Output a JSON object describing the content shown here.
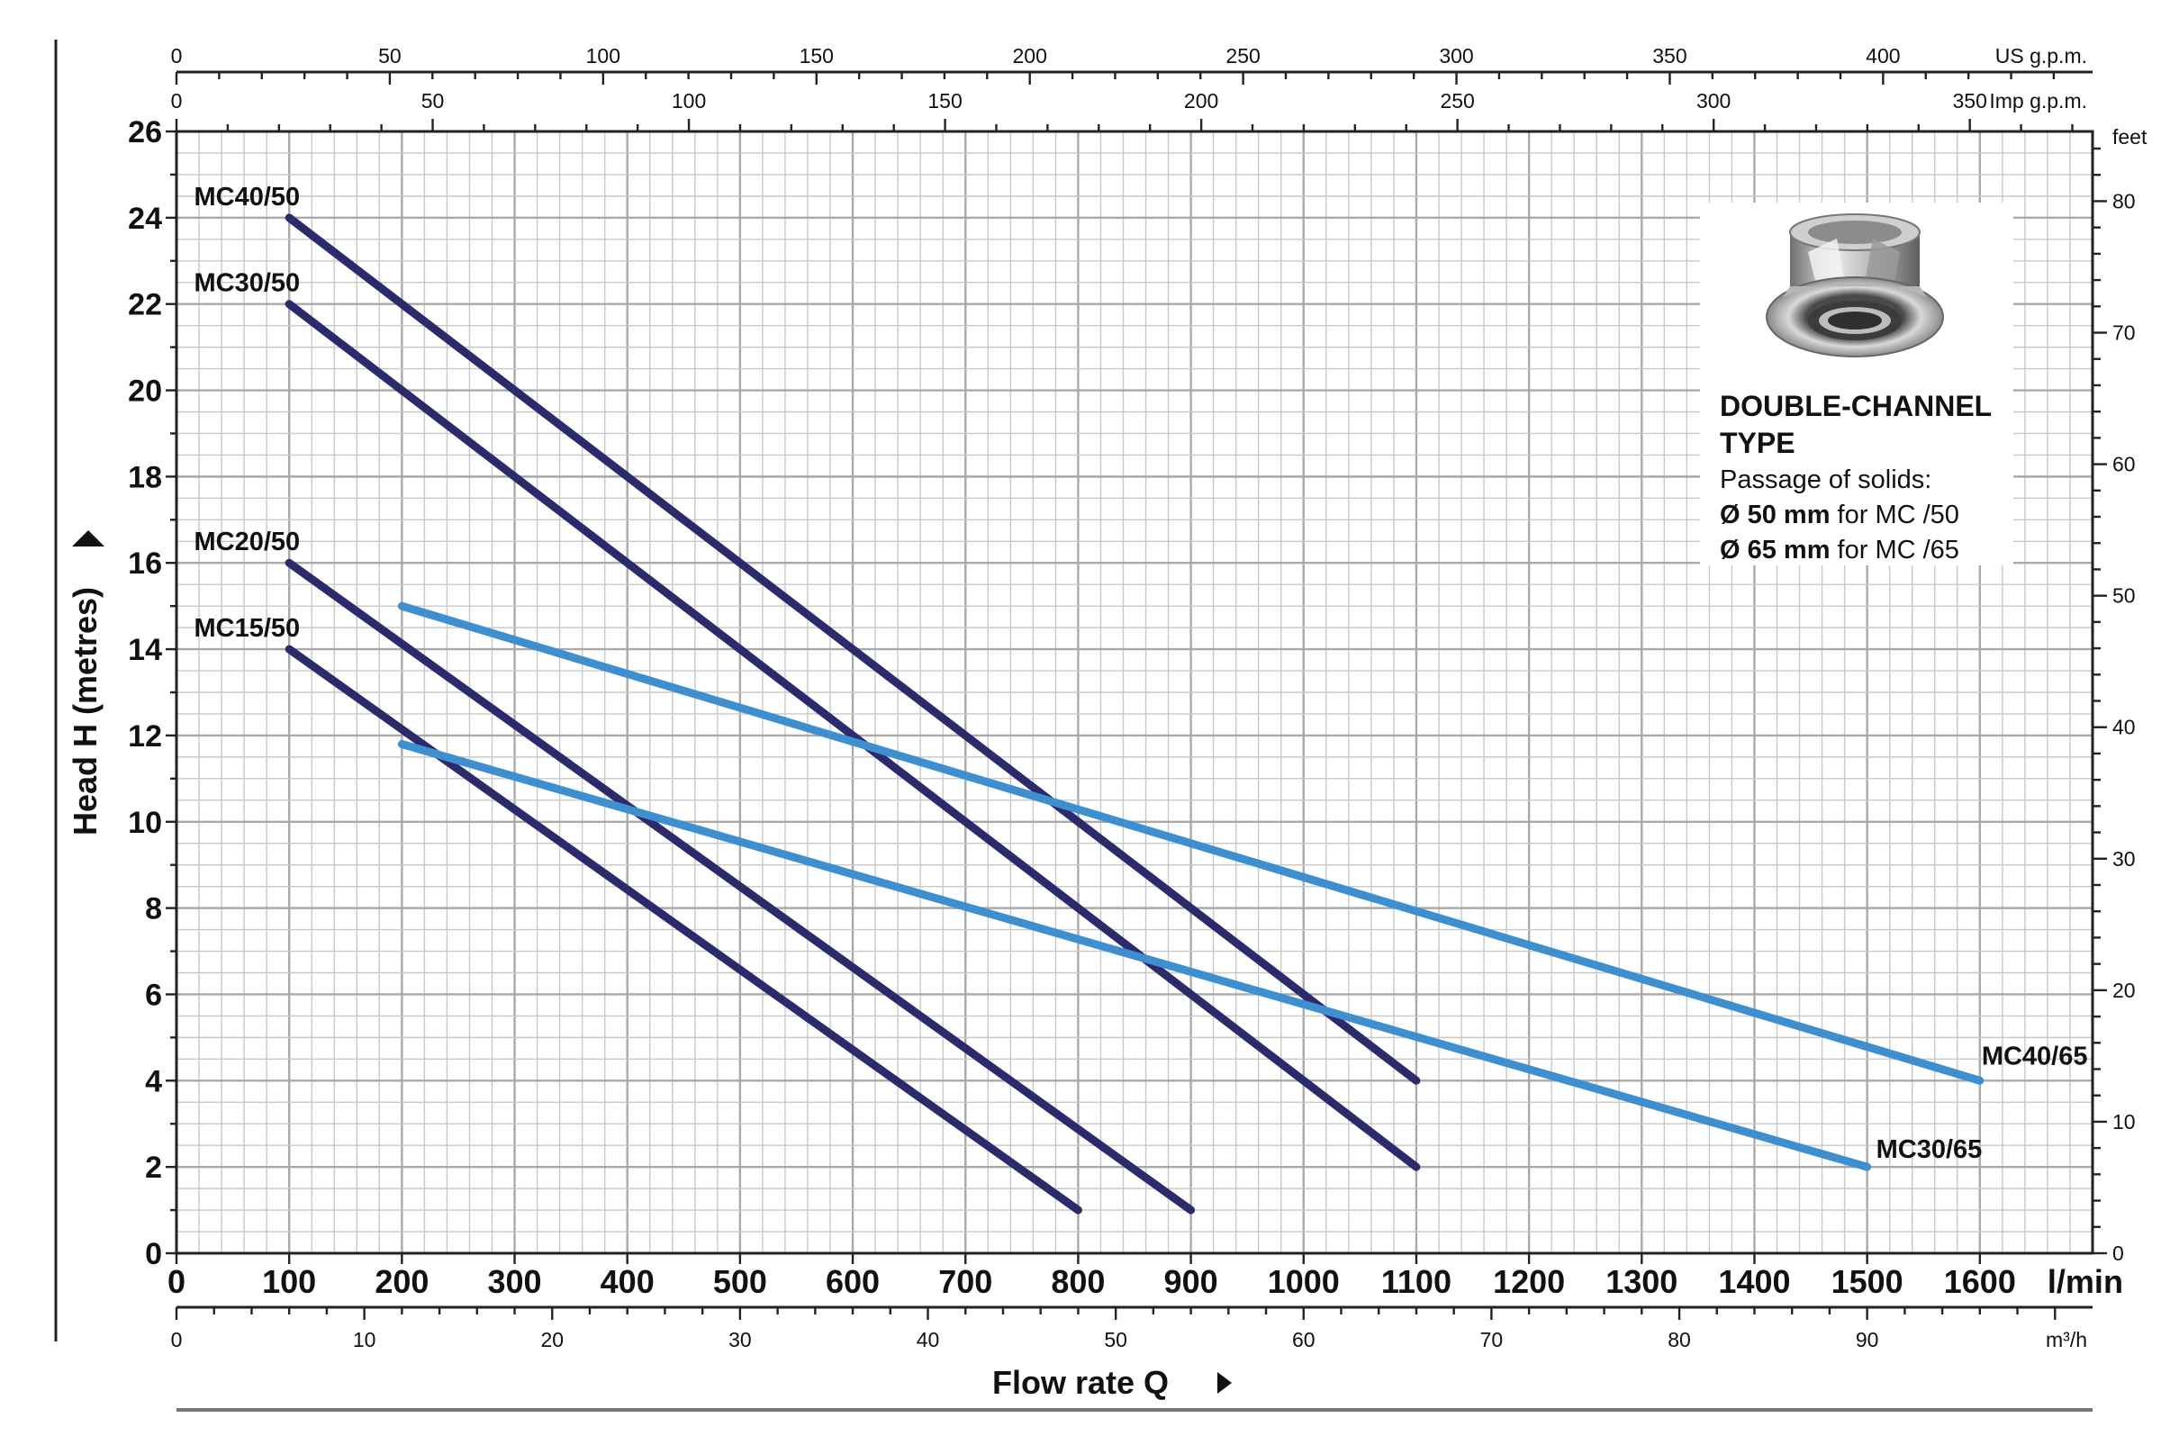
{
  "chart_data": {
    "type": "line",
    "title": "",
    "xlabel": "Flow rate Q",
    "ylabel": "Head H  (metres)",
    "xlim": [
      0,
      1700
    ],
    "ylim": [
      0,
      26
    ],
    "grid": true,
    "x_ticks": [
      0,
      100,
      200,
      300,
      400,
      500,
      600,
      700,
      800,
      900,
      1000,
      1100,
      1200,
      1300,
      1400,
      1500,
      1600
    ],
    "x_unit": "l/min",
    "y_ticks": [
      0,
      2,
      4,
      6,
      8,
      10,
      12,
      14,
      16,
      18,
      20,
      22,
      24,
      26
    ],
    "secondary_axes": [
      {
        "name": "us_gpm",
        "position": "top",
        "unit": "US g.p.m.",
        "ticks": [
          0,
          50,
          100,
          150,
          200,
          250,
          300,
          350,
          400
        ],
        "lpm_per_unit": 3.7854
      },
      {
        "name": "imp_gpm",
        "position": "top",
        "unit": "Imp g.p.m.",
        "ticks": [
          0,
          50,
          100,
          150,
          200,
          250,
          300,
          350
        ],
        "lpm_per_unit": 4.546
      },
      {
        "name": "m3h",
        "position": "bottom",
        "unit": "m³/h",
        "ticks": [
          0,
          10,
          20,
          30,
          40,
          50,
          60,
          70,
          80,
          90
        ],
        "lpm_per_unit": 16.6667
      },
      {
        "name": "feet",
        "position": "right",
        "unit": "feet",
        "ticks": [
          0,
          10,
          20,
          30,
          40,
          50,
          60,
          70,
          80
        ],
        "m_per_unit": 0.3048
      }
    ],
    "series": [
      {
        "name": "MC40/50",
        "color": "#2b2a6b",
        "points": [
          [
            100,
            24
          ],
          [
            1100,
            4
          ]
        ]
      },
      {
        "name": "MC30/50",
        "color": "#2b2a6b",
        "points": [
          [
            100,
            22
          ],
          [
            1100,
            2
          ]
        ]
      },
      {
        "name": "MC20/50",
        "color": "#2b2a6b",
        "points": [
          [
            100,
            16
          ],
          [
            900,
            1
          ]
        ]
      },
      {
        "name": "MC15/50",
        "color": "#2b2a6b",
        "points": [
          [
            100,
            14
          ],
          [
            800,
            1
          ]
        ]
      },
      {
        "name": "MC40/65",
        "color": "#3e8fd0",
        "points": [
          [
            200,
            15
          ],
          [
            1600,
            4
          ]
        ]
      },
      {
        "name": "MC30/65",
        "color": "#3e8fd0",
        "points": [
          [
            200,
            11.8
          ],
          [
            1500,
            2
          ]
        ]
      }
    ],
    "info_box": {
      "heading_line1": "DOUBLE-CHANNEL",
      "heading_line2": "TYPE",
      "line1": "Passage of solids:",
      "line2_bold": "Ø 50 mm",
      "line2_rest": " for MC /50",
      "line3_bold": "Ø 65 mm",
      "line3_rest": " for MC /65",
      "illustration": "double-channel-impeller-icon"
    }
  }
}
